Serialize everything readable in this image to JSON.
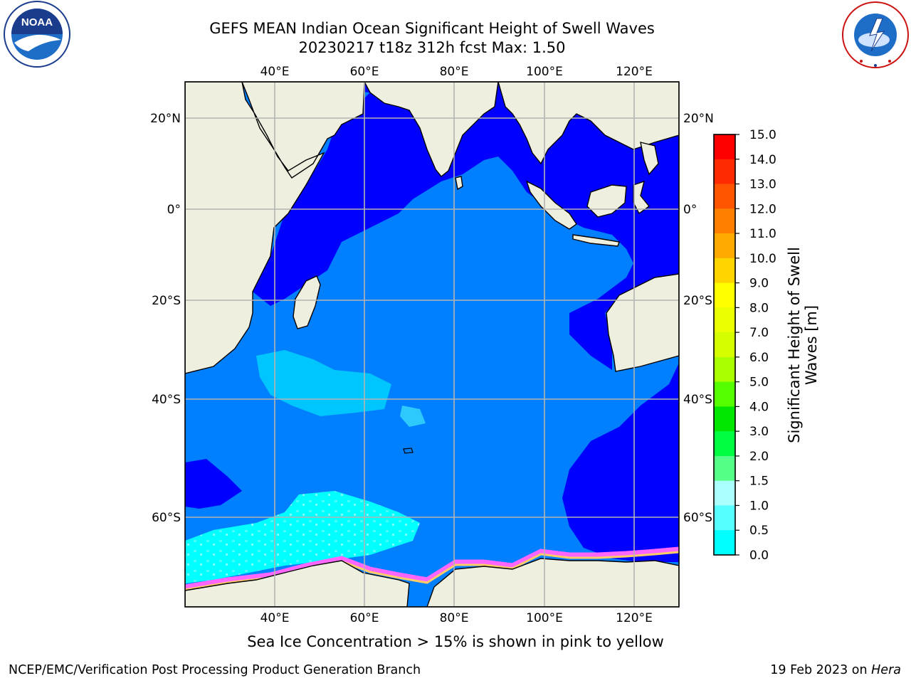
{
  "title": {
    "line1": "GEFS MEAN Indian Ocean Significant Height of Swell Waves",
    "line2": "20230217 t18z 312h fcst   Max: 1.50"
  },
  "map": {
    "lon_ticks": [
      "40°E",
      "60°E",
      "80°E",
      "100°E",
      "120°E"
    ],
    "lat_ticks": [
      "20°N",
      "0°",
      "20°S",
      "40°S",
      "60°S"
    ],
    "contour_island_label": "",
    "colors": {
      "land": "#efefdf",
      "ocean_low": "#0000ff",
      "ocean_mid": "#0080ff",
      "ocean_high": "#00ffff",
      "ocean_pale": "#4dfafa",
      "gridlines": "#b4b4b4",
      "sea_ice": [
        "#ff66ff",
        "#ff99cc",
        "#ffcc66",
        "#ffff66"
      ]
    }
  },
  "colorbar": {
    "title": "Significant Height of Swell Waves [m]",
    "labels": [
      "15.0",
      "14.0",
      "13.0",
      "12.0",
      "11.0",
      "10.0",
      "9.0",
      "8.0",
      "7.0",
      "6.0",
      "5.0",
      "4.0",
      "3.0",
      "2.0",
      "1.5",
      "1.0",
      "0.5",
      "0.0"
    ],
    "colors": [
      "#ff0000",
      "#ff2b00",
      "#ff5500",
      "#ff8000",
      "#ffaa00",
      "#ffd500",
      "#ffff00",
      "#eaff00",
      "#d5ff00",
      "#aaff00",
      "#55ff00",
      "#00e600",
      "#00ff40",
      "#55ff88",
      "#aaffff",
      "#55ffff",
      "#00ffff",
      "#0080ff",
      "#0000ff"
    ]
  },
  "footer": {
    "note": "Sea Ice Concentration > 15% is shown in pink to yellow",
    "credit_left": "NCEP/EMC/Verification Post Processing Product Generation Branch",
    "credit_right_date": "19 Feb 2023 on ",
    "credit_right_host": "Hera"
  },
  "logos": {
    "noaa": "NOAA",
    "noaa_ring": "NATIONAL OCEANIC AND ATMOSPHERIC ADMINISTRATION",
    "noaa_ring_bottom": "U.S. DEPARTMENT OF COMMERCE",
    "nws_ring": "NATIONAL WEATHER SERVICE"
  }
}
